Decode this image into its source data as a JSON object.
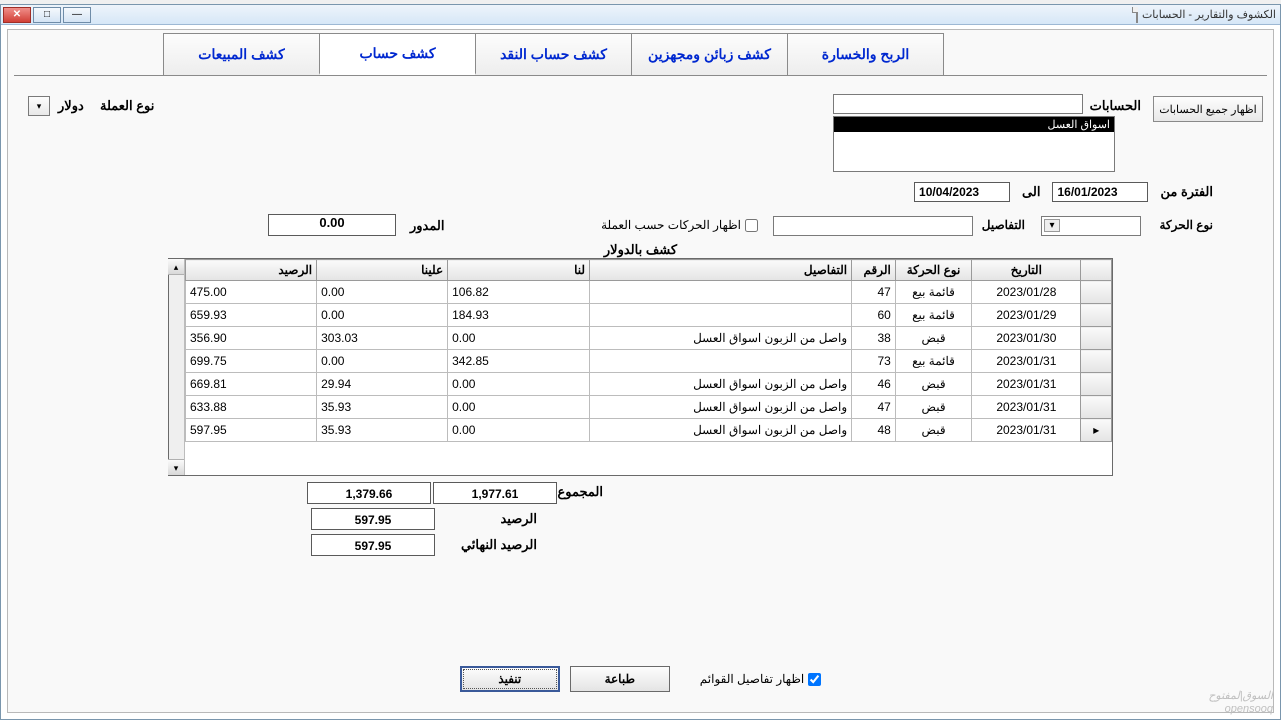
{
  "window": {
    "title": "الكشوف والتقارير - الحسابات"
  },
  "tabs": {
    "sales": "كشف المبيعات",
    "account": "كشف حساب",
    "cash": "كشف حساب النقد",
    "customers": "كشف زبائن ومجهزين",
    "profit": "الربح والخسارة"
  },
  "buttons": {
    "show_all_accounts": "اظهار جميع الحسابات",
    "print": "طباعة",
    "execute": "تنفيذ"
  },
  "labels": {
    "accounts": "الحسابات",
    "currency_type": "نوع العملة",
    "currency_value": "دولار",
    "period_from": "الفترة من",
    "to": "الى",
    "movement_type": "نوع الحركة",
    "details": "التفاصيل",
    "show_by_currency": "اظهار الحركات حسب العملة",
    "carried": "المدور",
    "table_title": "كشف بالدولار",
    "sum": "المجموع",
    "balance": "الرصيد",
    "final_balance": "الرصيد النهائي",
    "show_list_details": "اظهار تفاصيل القوائم"
  },
  "accounts_list": {
    "selected": "اسواق العسل"
  },
  "dates": {
    "from": "16/01/2023",
    "to": "10/04/2023"
  },
  "carried_value": "0.00",
  "columns": {
    "date": "التاريخ",
    "type": "نوع الحركة",
    "no": "الرقم",
    "details": "التفاصيل",
    "debit": "لنا",
    "credit": "علينا",
    "balance": "الرصيد"
  },
  "rows": [
    {
      "date": "2023/01/28",
      "type": "قائمة بيع",
      "no": "47",
      "details": "",
      "debit": "106.82",
      "credit": "0.00",
      "balance": "475.00"
    },
    {
      "date": "2023/01/29",
      "type": "قائمة بيع",
      "no": "60",
      "details": "",
      "debit": "184.93",
      "credit": "0.00",
      "balance": "659.93"
    },
    {
      "date": "2023/01/30",
      "type": "قبض",
      "no": "38",
      "details": "واصل من الزبون اسواق العسل",
      "debit": "0.00",
      "credit": "303.03",
      "balance": "356.90"
    },
    {
      "date": "2023/01/31",
      "type": "قائمة بيع",
      "no": "73",
      "details": "",
      "debit": "342.85",
      "credit": "0.00",
      "balance": "699.75"
    },
    {
      "date": "2023/01/31",
      "type": "قبض",
      "no": "46",
      "details": "واصل من الزبون اسواق العسل",
      "debit": "0.00",
      "credit": "29.94",
      "balance": "669.81"
    },
    {
      "date": "2023/01/31",
      "type": "قبض",
      "no": "47",
      "details": "واصل من الزبون اسواق العسل",
      "debit": "0.00",
      "credit": "35.93",
      "balance": "633.88"
    },
    {
      "date": "2023/01/31",
      "type": "قبض",
      "no": "48",
      "details": "واصل من الزبون اسواق العسل",
      "debit": "0.00",
      "credit": "35.93",
      "balance": "597.95"
    }
  ],
  "totals": {
    "sum_debit": "1,977.61",
    "sum_credit": "1,379.66",
    "balance": "597.95",
    "final_balance": "597.95"
  },
  "checkboxes": {
    "show_list_details_checked": true
  },
  "watermark": {
    "line1": "السوق|لمفتوح",
    "line2": "opensooq"
  },
  "column_widths": {
    "marker": 28,
    "date": 100,
    "type": 70,
    "no": 40,
    "details": 240,
    "debit": 130,
    "credit": 120,
    "balance": 120
  }
}
